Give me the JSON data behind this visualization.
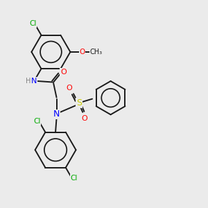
{
  "bg_color": "#ebebeb",
  "bond_color": "#1a1a1a",
  "atom_colors": {
    "C": "#1a1a1a",
    "N": "#0000ff",
    "O": "#ff0000",
    "S": "#cccc00",
    "Cl": "#00aa00",
    "H": "#808080"
  },
  "lw": 1.4,
  "fontsize": 7.5
}
